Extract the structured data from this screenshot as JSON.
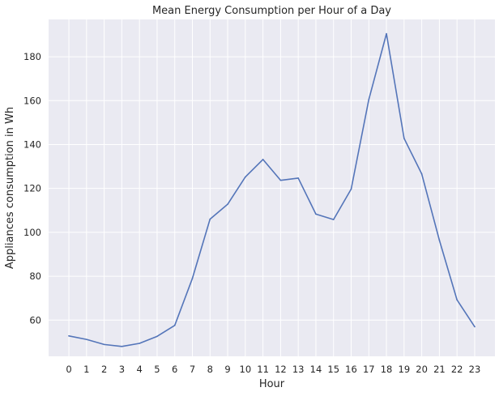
{
  "chart_data": {
    "type": "line",
    "title": "Mean Energy Consumption per Hour of a Day",
    "xlabel": "Hour",
    "ylabel": "Appliances consumption in Wh",
    "x": [
      0,
      1,
      2,
      3,
      4,
      5,
      6,
      7,
      8,
      9,
      10,
      11,
      12,
      13,
      14,
      15,
      16,
      17,
      18,
      19,
      20,
      21,
      22,
      23
    ],
    "x_tick_labels": [
      "0",
      "1",
      "2",
      "3",
      "4",
      "5",
      "6",
      "7",
      "8",
      "9",
      "10",
      "11",
      "12",
      "13",
      "14",
      "15",
      "16",
      "17",
      "18",
      "19",
      "20",
      "21",
      "22",
      "23"
    ],
    "y_ticks": [
      60,
      80,
      100,
      120,
      140,
      160,
      180
    ],
    "y_tick_labels": [
      "60",
      "80",
      "100",
      "120",
      "140",
      "160",
      "180"
    ],
    "xlim": [
      -1.15,
      24.15
    ],
    "ylim": [
      43.5,
      197
    ],
    "grid": true,
    "series": [
      {
        "values": [
          52.8,
          51.2,
          48.9,
          48.0,
          49.4,
          52.6,
          57.6,
          79.0,
          106.0,
          112.8,
          125.2,
          133.2,
          123.7,
          124.7,
          108.3,
          105.8,
          119.7,
          160.5,
          190.5,
          142.8,
          126.6,
          96.4,
          69.2,
          57.0
        ]
      }
    ],
    "colors": {
      "line": "#5475B9",
      "plot_background": "#EAEAF2",
      "grid": "#FFFFFF",
      "text": "#262626"
    }
  }
}
